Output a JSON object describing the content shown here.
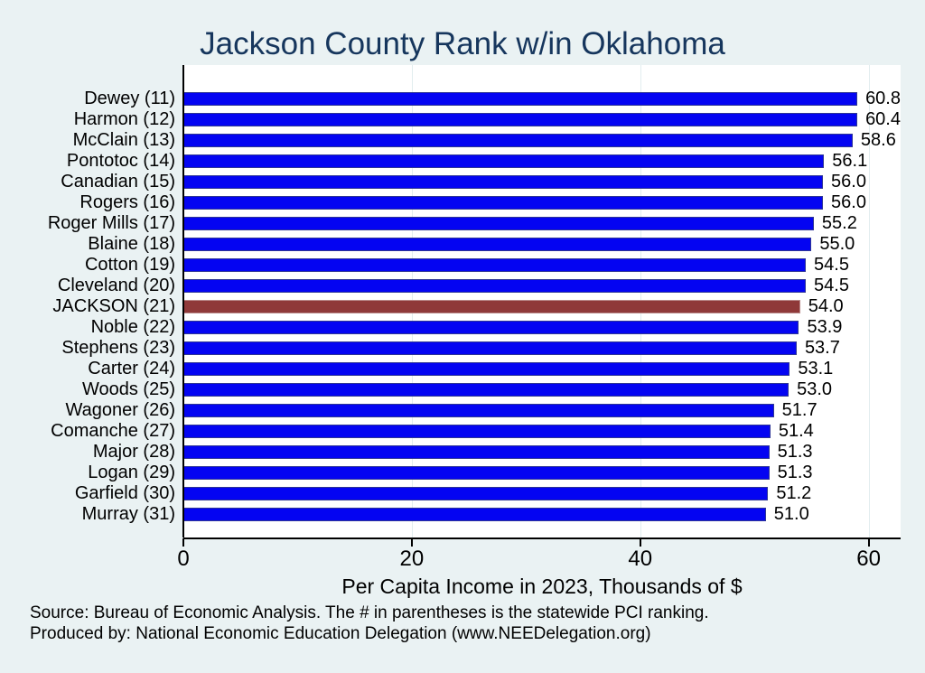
{
  "title": {
    "text": "Jackson County Rank w/in Oklahoma",
    "color": "#16365d"
  },
  "chart_data": {
    "type": "bar",
    "orientation": "horizontal",
    "title": "Jackson County Rank w/in Oklahoma",
    "xlabel": "Per Capita Income in 2023, Thousands of $",
    "ylabel": "",
    "categories": [
      "Dewey (11)",
      "Harmon (12)",
      "McClain (13)",
      "Pontotoc (14)",
      "Canadian (15)",
      "Rogers (16)",
      "Roger Mills (17)",
      "Blaine (18)",
      "Cotton (19)",
      "Cleveland (20)",
      "JACKSON (21)",
      "Noble (22)",
      "Stephens (23)",
      "Carter (24)",
      "Woods (25)",
      "Wagoner (26)",
      "Comanche (27)",
      "Major (28)",
      "Logan (29)",
      "Garfield (30)",
      "Murray (31)"
    ],
    "values": [
      60.8,
      60.4,
      58.6,
      56.1,
      56.0,
      56.0,
      55.2,
      55.0,
      54.5,
      54.5,
      54.0,
      53.9,
      53.7,
      53.1,
      53.0,
      51.7,
      51.4,
      51.3,
      51.3,
      51.2,
      51.0
    ],
    "value_label_format": "1-decimal",
    "value_labels": [
      "60.8",
      "60.4",
      "58.6",
      "56.1",
      "56.0",
      "56.0",
      "55.2",
      "55.0",
      "54.5",
      "54.5",
      "54.0",
      "53.9",
      "53.7",
      "53.1",
      "53.0",
      "51.7",
      "51.4",
      "51.3",
      "51.3",
      "51.2",
      "51.0"
    ],
    "highlight_index": 10,
    "highlight_category": "JACKSON (21)",
    "bar_color": "#0404f2",
    "highlight_color": "#8f3939",
    "xticks": [
      0,
      20,
      40,
      60
    ],
    "xlim": [
      0,
      62.8
    ],
    "grid": "vertical-light",
    "legend": "none",
    "plot_background": "#ffffff",
    "figure_background": "#eaf2f3"
  },
  "footer": {
    "line1": "Source: Bureau of Economic Analysis. The # in parentheses is the statewide PCI ranking.",
    "line2": "Produced by: National Economic Education Delegation (www.NEEDelegation.org)"
  }
}
